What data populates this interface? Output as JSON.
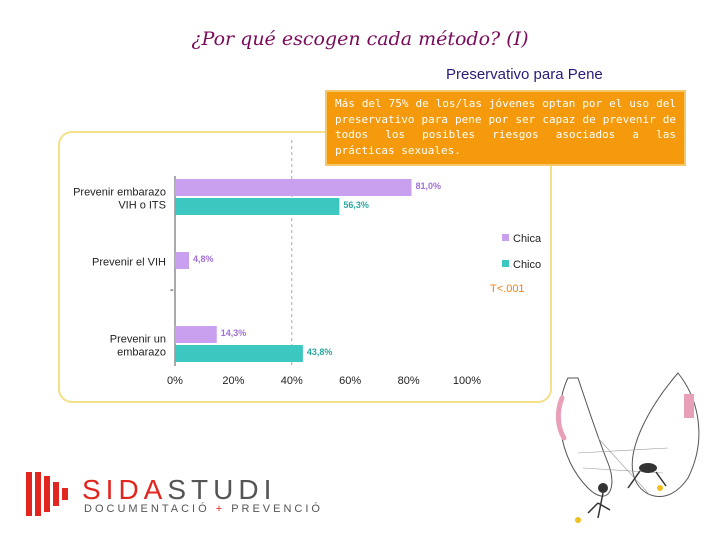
{
  "page": {
    "title": "¿Por qué escogen cada método? (I)",
    "subtitle": "Preservativo para Pene",
    "note": "Más del 75% de los/las jóvenes optan por el uso del preservativo para pene por ser capaz de prevenir de todos los posibles riesgos asociados a las prácticas sexuales.",
    "significance": "T<.001",
    "dash": "-"
  },
  "logo": {
    "name_a": "SIDA",
    "name_b": "STUDI",
    "tagline_a": "DOCUMENTACIÓ",
    "tagline_plus": " + ",
    "tagline_b": "PREVENCIÓ"
  },
  "colors": {
    "chica": "#c9a0f0",
    "chico": "#3cc8c0",
    "label_chica": "#a070d8",
    "label_chico": "#28a8a0",
    "significance": "#f08010"
  },
  "chart_data": {
    "type": "bar",
    "orientation": "horizontal",
    "categories": [
      "Prevenir  embarazo\nVIH o ITS",
      "Prevenir el VIH",
      "Prevenir un\nembarazo"
    ],
    "series": [
      {
        "name": "Chica",
        "values": [
          81.0,
          4.8,
          14.3
        ],
        "labels": [
          "81,0%",
          "4,8%",
          "14,3%"
        ]
      },
      {
        "name": "Chico",
        "values": [
          56.3,
          null,
          43.8
        ],
        "labels": [
          "56,3%",
          "",
          "43,8%"
        ]
      }
    ],
    "xlim": [
      0,
      100
    ],
    "xticks": [
      "0%",
      "20%",
      "40%",
      "60%",
      "80%",
      "100%"
    ],
    "gridline_at": 40,
    "legend_position": "right"
  }
}
